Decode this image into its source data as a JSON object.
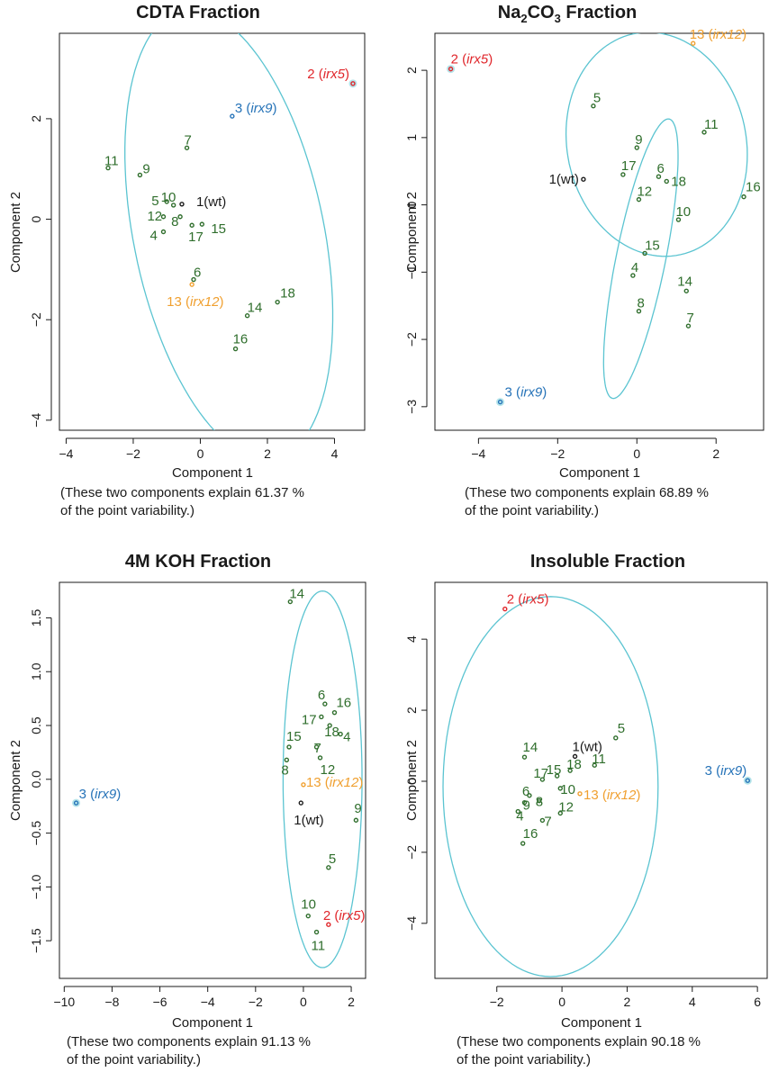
{
  "colors": {
    "ellipse": "#5bc4d1",
    "green": "#2f6e2c",
    "wt": "#1a1a1a",
    "irx5": "#e0262b",
    "irx9": "#2673b8",
    "irx12": "#f0a030"
  },
  "chart_data": [
    {
      "type": "scatter",
      "title": "CDTA Fraction",
      "xlabel": "Component 1",
      "ylabel": "Component 2",
      "caption": [
        "(These two components explain 61.37 %",
        "of the point variability.)"
      ],
      "xlim": [
        -4.2,
        4.9
      ],
      "ylim": [
        -4.2,
        3.7
      ],
      "xticks": [
        -4,
        -2,
        0,
        2,
        4
      ],
      "yticks": [
        -4,
        -2,
        0,
        2
      ],
      "ellipses": [
        {
          "cx": 0.85,
          "cy": -0.3,
          "rx": 2.75,
          "ry": 4.7,
          "angle": 22
        }
      ],
      "points": [
        {
          "x": 4.55,
          "y": 2.7,
          "label": "2",
          "genotype": "irx5",
          "color": "irx5",
          "dx": -4,
          "dy": -6,
          "anchor": "end",
          "halo": true
        },
        {
          "x": 0.95,
          "y": 2.05,
          "label": "3",
          "genotype": "irx9",
          "color": "irx9",
          "dx": 3,
          "dy": -4,
          "anchor": "start"
        },
        {
          "x": -0.4,
          "y": 1.42,
          "label": "7",
          "color": "green",
          "dx": -3,
          "dy": -4,
          "anchor": "start"
        },
        {
          "x": -2.75,
          "y": 1.02,
          "label": "11",
          "color": "green",
          "dx": -4,
          "dy": -3,
          "anchor": "start"
        },
        {
          "x": -1.8,
          "y": 0.88,
          "label": "9",
          "color": "green",
          "dx": 3,
          "dy": -2,
          "anchor": "start"
        },
        {
          "x": -0.8,
          "y": 0.28,
          "label": "10",
          "color": "green",
          "dx": -14,
          "dy": -4,
          "anchor": "start"
        },
        {
          "x": -0.55,
          "y": 0.3,
          "label": "1(wt)",
          "genotype": "",
          "color": "wt",
          "dx": 16,
          "dy": 2,
          "anchor": "start"
        },
        {
          "x": -1.0,
          "y": 0.35,
          "label": "5",
          "color": "green",
          "dx": -17,
          "dy": 4,
          "anchor": "start"
        },
        {
          "x": -0.6,
          "y": 0.05,
          "label": "8",
          "color": "green",
          "dx": -10,
          "dy": 10,
          "anchor": "start"
        },
        {
          "x": -1.1,
          "y": 0.05,
          "label": "12",
          "color": "green",
          "dx": -18,
          "dy": 4,
          "anchor": "start"
        },
        {
          "x": -0.25,
          "y": -0.12,
          "label": "17",
          "color": "green",
          "dx": -4,
          "dy": 18,
          "anchor": "start"
        },
        {
          "x": 0.05,
          "y": -0.1,
          "label": "15",
          "color": "green",
          "dx": 10,
          "dy": 10,
          "anchor": "start"
        },
        {
          "x": -1.1,
          "y": -0.25,
          "label": "4",
          "color": "green",
          "dx": -15,
          "dy": 9,
          "anchor": "start"
        },
        {
          "x": -0.2,
          "y": -1.2,
          "label": "6",
          "color": "green",
          "dx": 0,
          "dy": -3,
          "anchor": "start"
        },
        {
          "x": -0.25,
          "y": -1.3,
          "label": "13",
          "genotype": "irx12",
          "color": "irx12",
          "dx": -28,
          "dy": 24,
          "anchor": "start"
        },
        {
          "x": 2.3,
          "y": -1.65,
          "label": "18",
          "color": "green",
          "dx": 3,
          "dy": -5,
          "anchor": "start"
        },
        {
          "x": 1.4,
          "y": -1.92,
          "label": "14",
          "color": "green",
          "dx": 0,
          "dy": -4,
          "anchor": "start"
        },
        {
          "x": 1.05,
          "y": -2.58,
          "label": "16",
          "color": "green",
          "dx": -3,
          "dy": -6,
          "anchor": "start"
        }
      ]
    },
    {
      "type": "scatter",
      "title": "Na₂CO₃ Fraction",
      "title_parts": [
        "Na",
        "2",
        "CO",
        "3",
        " Fraction"
      ],
      "xlabel": "Component 1",
      "ylabel": "Component 2",
      "caption": [
        "(These two components explain 68.89 %",
        "of the point variability.)"
      ],
      "xlim": [
        -5.1,
        3.2
      ],
      "ylim": [
        -3.35,
        2.55
      ],
      "xticks": [
        -4,
        -2,
        0,
        2
      ],
      "yticks": [
        -3,
        -2,
        -1,
        0,
        1,
        2
      ],
      "ellipses": [
        {
          "cx": 0.5,
          "cy": 0.9,
          "rx": 2.3,
          "ry": 1.65,
          "angle": -8
        },
        {
          "cx": 0.1,
          "cy": -0.8,
          "rx": 0.6,
          "ry": 2.2,
          "angle": -20
        }
      ],
      "points": [
        {
          "x": -4.7,
          "y": 2.02,
          "label": "2",
          "genotype": "irx5",
          "color": "irx5",
          "dx": 0,
          "dy": -6,
          "anchor": "start",
          "halo": true
        },
        {
          "x": 1.42,
          "y": 2.4,
          "label": "13",
          "genotype": "irx12",
          "color": "irx12",
          "dx": -4,
          "dy": -5,
          "anchor": "start"
        },
        {
          "x": -1.1,
          "y": 1.47,
          "label": "5",
          "color": "green",
          "dx": 0,
          "dy": -4,
          "anchor": "start"
        },
        {
          "x": 1.7,
          "y": 1.08,
          "label": "11",
          "color": "green",
          "dx": 0,
          "dy": -4,
          "anchor": "start"
        },
        {
          "x": 0.0,
          "y": 0.85,
          "label": "9",
          "color": "green",
          "dx": -2,
          "dy": -4,
          "anchor": "start"
        },
        {
          "x": -1.35,
          "y": 0.38,
          "label": "1(wt)",
          "genotype": "",
          "color": "wt",
          "dx": -5,
          "dy": 5,
          "anchor": "end"
        },
        {
          "x": -0.35,
          "y": 0.45,
          "label": "17",
          "color": "green",
          "dx": -2,
          "dy": -5,
          "anchor": "start"
        },
        {
          "x": 0.55,
          "y": 0.42,
          "label": "6",
          "color": "green",
          "dx": -2,
          "dy": -4,
          "anchor": "start"
        },
        {
          "x": 0.75,
          "y": 0.35,
          "label": "18",
          "color": "green",
          "dx": 5,
          "dy": 5,
          "anchor": "start"
        },
        {
          "x": 0.05,
          "y": 0.08,
          "label": "12",
          "color": "green",
          "dx": -2,
          "dy": -4,
          "anchor": "start"
        },
        {
          "x": 2.7,
          "y": 0.12,
          "label": "16",
          "color": "green",
          "dx": 2,
          "dy": -6,
          "anchor": "start"
        },
        {
          "x": 1.05,
          "y": -0.22,
          "label": "10",
          "color": "green",
          "dx": -3,
          "dy": -4,
          "anchor": "start"
        },
        {
          "x": 0.2,
          "y": -0.72,
          "label": "15",
          "color": "green",
          "dx": 0,
          "dy": -4,
          "anchor": "start"
        },
        {
          "x": -0.1,
          "y": -1.05,
          "label": "4",
          "color": "green",
          "dx": -2,
          "dy": -4,
          "anchor": "start"
        },
        {
          "x": 1.25,
          "y": -1.28,
          "label": "14",
          "color": "green",
          "dx": -10,
          "dy": -6,
          "anchor": "start"
        },
        {
          "x": 0.05,
          "y": -1.58,
          "label": "8",
          "color": "green",
          "dx": -2,
          "dy": -4,
          "anchor": "start"
        },
        {
          "x": 1.3,
          "y": -1.8,
          "label": "7",
          "color": "green",
          "dx": -2,
          "dy": -4,
          "anchor": "start"
        },
        {
          "x": -3.45,
          "y": -2.93,
          "label": "3",
          "genotype": "irx9",
          "color": "irx9",
          "dx": 5,
          "dy": -6,
          "anchor": "start",
          "halo": true
        }
      ]
    },
    {
      "type": "scatter",
      "title": "4M KOH Fraction",
      "xlabel": "Component 1",
      "ylabel": "Component 2",
      "caption": [
        "(These two components explain 91.13 %",
        "of the point variability.)"
      ],
      "xlim": [
        -10.2,
        2.6
      ],
      "ylim": [
        -1.85,
        1.83
      ],
      "xticks": [
        -10,
        -8,
        -6,
        -4,
        -2,
        0,
        2
      ],
      "yticks": [
        -1.5,
        -1.0,
        -0.5,
        0.0,
        0.5,
        1.0,
        1.5
      ],
      "ellipses": [
        {
          "cx": 0.8,
          "cy": 0.0,
          "rx": 1.65,
          "ry": 1.75,
          "angle": 0
        }
      ],
      "points": [
        {
          "x": -0.55,
          "y": 1.65,
          "label": "14",
          "color": "green",
          "dx": -1,
          "dy": -4,
          "anchor": "start"
        },
        {
          "x": 0.9,
          "y": 0.7,
          "label": "6",
          "color": "green",
          "dx": -8,
          "dy": -5,
          "anchor": "start"
        },
        {
          "x": 1.3,
          "y": 0.62,
          "label": "16",
          "color": "green",
          "dx": 2,
          "dy": -6,
          "anchor": "start"
        },
        {
          "x": 0.75,
          "y": 0.58,
          "label": "17",
          "color": "green",
          "dx": -22,
          "dy": 8,
          "anchor": "start"
        },
        {
          "x": 1.1,
          "y": 0.5,
          "label": "18",
          "color": "green",
          "dx": -6,
          "dy": 12,
          "anchor": "start"
        },
        {
          "x": 1.55,
          "y": 0.42,
          "label": "4",
          "color": "green",
          "dx": 3,
          "dy": 8,
          "anchor": "start"
        },
        {
          "x": -0.6,
          "y": 0.3,
          "label": "15",
          "color": "green",
          "dx": -3,
          "dy": -7,
          "anchor": "start"
        },
        {
          "x": 0.55,
          "y": 0.3,
          "label": "7",
          "color": "green",
          "dx": -3,
          "dy": 6,
          "anchor": "start"
        },
        {
          "x": -0.7,
          "y": 0.18,
          "label": "8",
          "color": "green",
          "dx": -6,
          "dy": 16,
          "anchor": "start"
        },
        {
          "x": 0.7,
          "y": 0.2,
          "label": "12",
          "color": "green",
          "dx": 0,
          "dy": 18,
          "anchor": "start"
        },
        {
          "x": 0.0,
          "y": -0.05,
          "label": "13",
          "genotype": "irx12",
          "color": "irx12",
          "dx": 3,
          "dy": 2,
          "anchor": "start"
        },
        {
          "x": -0.1,
          "y": -0.22,
          "label": "1(wt)",
          "genotype": "",
          "color": "wt",
          "dx": -8,
          "dy": 24,
          "anchor": "start"
        },
        {
          "x": 2.2,
          "y": -0.38,
          "label": "9",
          "color": "green",
          "dx": -2,
          "dy": -8,
          "anchor": "start"
        },
        {
          "x": -9.5,
          "y": -0.22,
          "label": "3",
          "genotype": "irx9",
          "color": "irx9",
          "dx": 3,
          "dy": -5,
          "anchor": "start",
          "halo": true
        },
        {
          "x": 1.05,
          "y": -0.82,
          "label": "5",
          "color": "green",
          "dx": 0,
          "dy": -5,
          "anchor": "start"
        },
        {
          "x": 0.2,
          "y": -1.27,
          "label": "10",
          "color": "green",
          "dx": -8,
          "dy": -8,
          "anchor": "start"
        },
        {
          "x": 1.05,
          "y": -1.35,
          "label": "2",
          "genotype": "irx5",
          "color": "irx5",
          "dx": -6,
          "dy": -5,
          "anchor": "start"
        },
        {
          "x": 0.55,
          "y": -1.42,
          "label": "11",
          "color": "green",
          "dx": -6,
          "dy": 20,
          "anchor": "start"
        }
      ]
    },
    {
      "type": "scatter",
      "title": "Insoluble Fraction",
      "xlabel": "Component 1",
      "ylabel": "Component 2",
      "caption": [
        "(These two components explain 90.18 %",
        "of the point variability.)"
      ],
      "xlim": [
        -3.9,
        6.3
      ],
      "ylim": [
        -5.55,
        5.6
      ],
      "xticks": [
        -2,
        0,
        2,
        4,
        6
      ],
      "yticks": [
        -4,
        -2,
        0,
        2,
        4
      ],
      "ellipses": [
        {
          "cx": -0.35,
          "cy": -0.15,
          "rx": 3.3,
          "ry": 5.35,
          "angle": 0
        }
      ],
      "points": [
        {
          "x": -1.75,
          "y": 4.85,
          "label": "2",
          "genotype": "irx5",
          "color": "irx5",
          "dx": 2,
          "dy": -6,
          "anchor": "start"
        },
        {
          "x": 1.65,
          "y": 1.22,
          "label": "5",
          "color": "green",
          "dx": 2,
          "dy": -6,
          "anchor": "start"
        },
        {
          "x": 0.4,
          "y": 0.7,
          "label": "1(wt)",
          "genotype": "",
          "color": "wt",
          "dx": -3,
          "dy": -6,
          "anchor": "start"
        },
        {
          "x": -1.15,
          "y": 0.68,
          "label": "14",
          "color": "green",
          "dx": -2,
          "dy": -6,
          "anchor": "start"
        },
        {
          "x": 1.0,
          "y": 0.45,
          "label": "11",
          "color": "green",
          "dx": -3,
          "dy": -2,
          "anchor": "start"
        },
        {
          "x": 0.25,
          "y": 0.3,
          "label": "18",
          "color": "green",
          "dx": -4,
          "dy": -2,
          "anchor": "start"
        },
        {
          "x": -0.15,
          "y": 0.15,
          "label": "15",
          "color": "green",
          "dx": -12,
          "dy": -2,
          "anchor": "start"
        },
        {
          "x": -0.6,
          "y": 0.05,
          "label": "17",
          "color": "green",
          "dx": -10,
          "dy": -2,
          "anchor": "start"
        },
        {
          "x": -0.05,
          "y": -0.2,
          "label": "10",
          "color": "green",
          "dx": 0,
          "dy": 6,
          "anchor": "start"
        },
        {
          "x": 0.55,
          "y": -0.35,
          "label": "13",
          "genotype": "irx12",
          "color": "irx12",
          "dx": 4,
          "dy": 6,
          "anchor": "start"
        },
        {
          "x": -1.0,
          "y": -0.4,
          "label": "6",
          "color": "green",
          "dx": -8,
          "dy": 0,
          "anchor": "start"
        },
        {
          "x": -0.7,
          "y": -0.55,
          "label": "8",
          "color": "green",
          "dx": -4,
          "dy": 6,
          "anchor": "start"
        },
        {
          "x": -1.15,
          "y": -0.6,
          "label": "9",
          "color": "green",
          "dx": -2,
          "dy": 8,
          "anchor": "start"
        },
        {
          "x": -0.05,
          "y": -0.9,
          "label": "12",
          "color": "green",
          "dx": -2,
          "dy": -2,
          "anchor": "start"
        },
        {
          "x": -1.35,
          "y": -0.85,
          "label": "4",
          "color": "green",
          "dx": -2,
          "dy": 10,
          "anchor": "start"
        },
        {
          "x": -0.6,
          "y": -1.1,
          "label": "7",
          "color": "green",
          "dx": 2,
          "dy": 6,
          "anchor": "start"
        },
        {
          "x": -1.2,
          "y": -1.75,
          "label": "16",
          "color": "green",
          "dx": 0,
          "dy": -6,
          "anchor": "start"
        },
        {
          "x": 5.7,
          "y": 0.02,
          "label": "3",
          "genotype": "irx9",
          "color": "irx9",
          "dx": -1,
          "dy": -6,
          "anchor": "end",
          "halo": true
        }
      ]
    }
  ]
}
